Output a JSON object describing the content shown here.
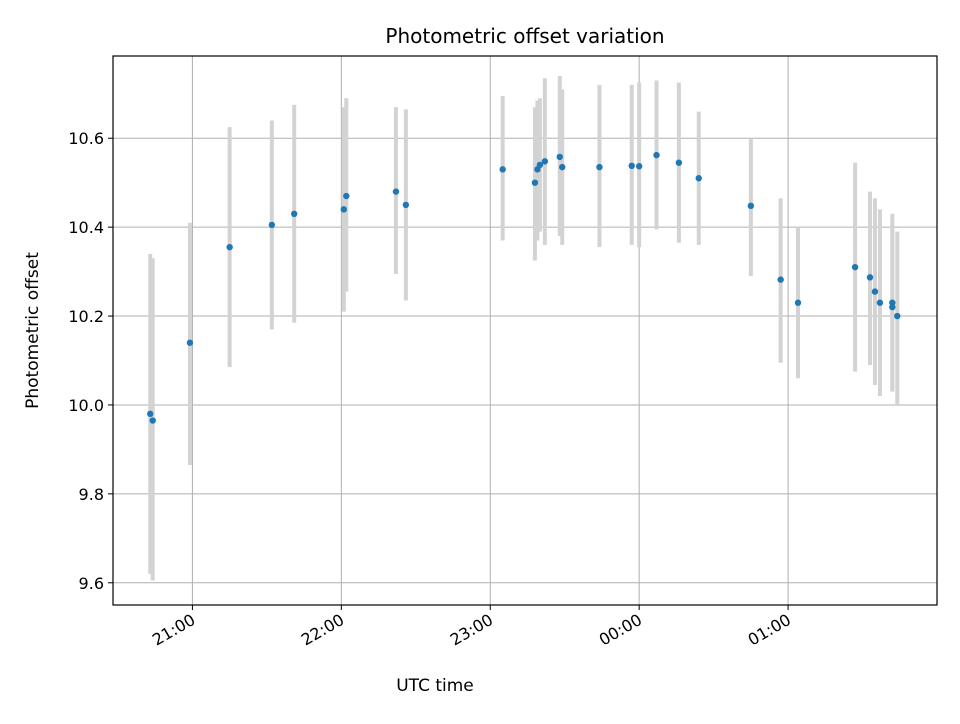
{
  "chart_data": {
    "type": "scatter",
    "title": "Photometric offset variation",
    "xlabel": "UTC time",
    "ylabel": "Photometric offset",
    "x_axis_type": "time",
    "x_ticks": [
      "21:00",
      "22:00",
      "23:00",
      "00:00",
      "01:00"
    ],
    "y_ticks": [
      "9.6",
      "9.8",
      "10.0",
      "10.2",
      "10.4",
      "10.6"
    ],
    "ylim": [
      9.55,
      10.785
    ],
    "xlim": [
      "20:28",
      "02:00"
    ],
    "grid": true,
    "series": [
      {
        "color": "#1f77b4",
        "errorbar_color": "#d3d3d3",
        "points": [
          {
            "x": "20:43",
            "y": 9.98,
            "ylo": 9.62,
            "yhi": 10.34
          },
          {
            "x": "20:44",
            "y": 9.965,
            "ylo": 9.605,
            "yhi": 10.33
          },
          {
            "x": "20:59",
            "y": 10.14,
            "ylo": 9.865,
            "yhi": 10.41
          },
          {
            "x": "21:15",
            "y": 10.355,
            "ylo": 10.085,
            "yhi": 10.625
          },
          {
            "x": "21:32",
            "y": 10.405,
            "ylo": 10.17,
            "yhi": 10.64
          },
          {
            "x": "21:41",
            "y": 10.43,
            "ylo": 10.185,
            "yhi": 10.675
          },
          {
            "x": "22:01",
            "y": 10.44,
            "ylo": 10.21,
            "yhi": 10.67
          },
          {
            "x": "22:02",
            "y": 10.47,
            "ylo": 10.255,
            "yhi": 10.69
          },
          {
            "x": "22:22",
            "y": 10.48,
            "ylo": 10.295,
            "yhi": 10.67
          },
          {
            "x": "22:26",
            "y": 10.45,
            "ylo": 10.235,
            "yhi": 10.665
          },
          {
            "x": "23:05",
            "y": 10.53,
            "ylo": 10.37,
            "yhi": 10.695
          },
          {
            "x": "23:18",
            "y": 10.5,
            "ylo": 10.325,
            "yhi": 10.67
          },
          {
            "x": "23:19",
            "y": 10.53,
            "ylo": 10.37,
            "yhi": 10.685
          },
          {
            "x": "23:20",
            "y": 10.54,
            "ylo": 10.39,
            "yhi": 10.69
          },
          {
            "x": "23:22",
            "y": 10.548,
            "ylo": 10.36,
            "yhi": 10.735
          },
          {
            "x": "23:28",
            "y": 10.558,
            "ylo": 10.38,
            "yhi": 10.74
          },
          {
            "x": "23:29",
            "y": 10.535,
            "ylo": 10.36,
            "yhi": 10.71
          },
          {
            "x": "23:44",
            "y": 10.535,
            "ylo": 10.355,
            "yhi": 10.72
          },
          {
            "x": "23:57",
            "y": 10.538,
            "ylo": 10.36,
            "yhi": 10.72
          },
          {
            "x": "00:00",
            "y": 10.537,
            "ylo": 10.355,
            "yhi": 10.725
          },
          {
            "x": "00:07",
            "y": 10.562,
            "ylo": 10.395,
            "yhi": 10.73
          },
          {
            "x": "00:16",
            "y": 10.545,
            "ylo": 10.365,
            "yhi": 10.725
          },
          {
            "x": "00:24",
            "y": 10.51,
            "ylo": 10.36,
            "yhi": 10.66
          },
          {
            "x": "00:45",
            "y": 10.448,
            "ylo": 10.29,
            "yhi": 10.6
          },
          {
            "x": "00:57",
            "y": 10.282,
            "ylo": 10.095,
            "yhi": 10.465
          },
          {
            "x": "01:04",
            "y": 10.23,
            "ylo": 10.06,
            "yhi": 10.4
          },
          {
            "x": "01:27",
            "y": 10.31,
            "ylo": 10.075,
            "yhi": 10.545
          },
          {
            "x": "01:33",
            "y": 10.287,
            "ylo": 10.09,
            "yhi": 10.48
          },
          {
            "x": "01:35",
            "y": 10.255,
            "ylo": 10.045,
            "yhi": 10.465
          },
          {
            "x": "01:37",
            "y": 10.23,
            "ylo": 10.02,
            "yhi": 10.44
          },
          {
            "x": "01:42",
            "y": 10.22,
            "ylo": 10.035,
            "yhi": 10.405
          },
          {
            "x": "01:42",
            "y": 10.23,
            "ylo": 10.03,
            "yhi": 10.43
          },
          {
            "x": "01:44",
            "y": 10.2,
            "ylo": 10.0,
            "yhi": 10.39
          }
        ]
      }
    ]
  }
}
